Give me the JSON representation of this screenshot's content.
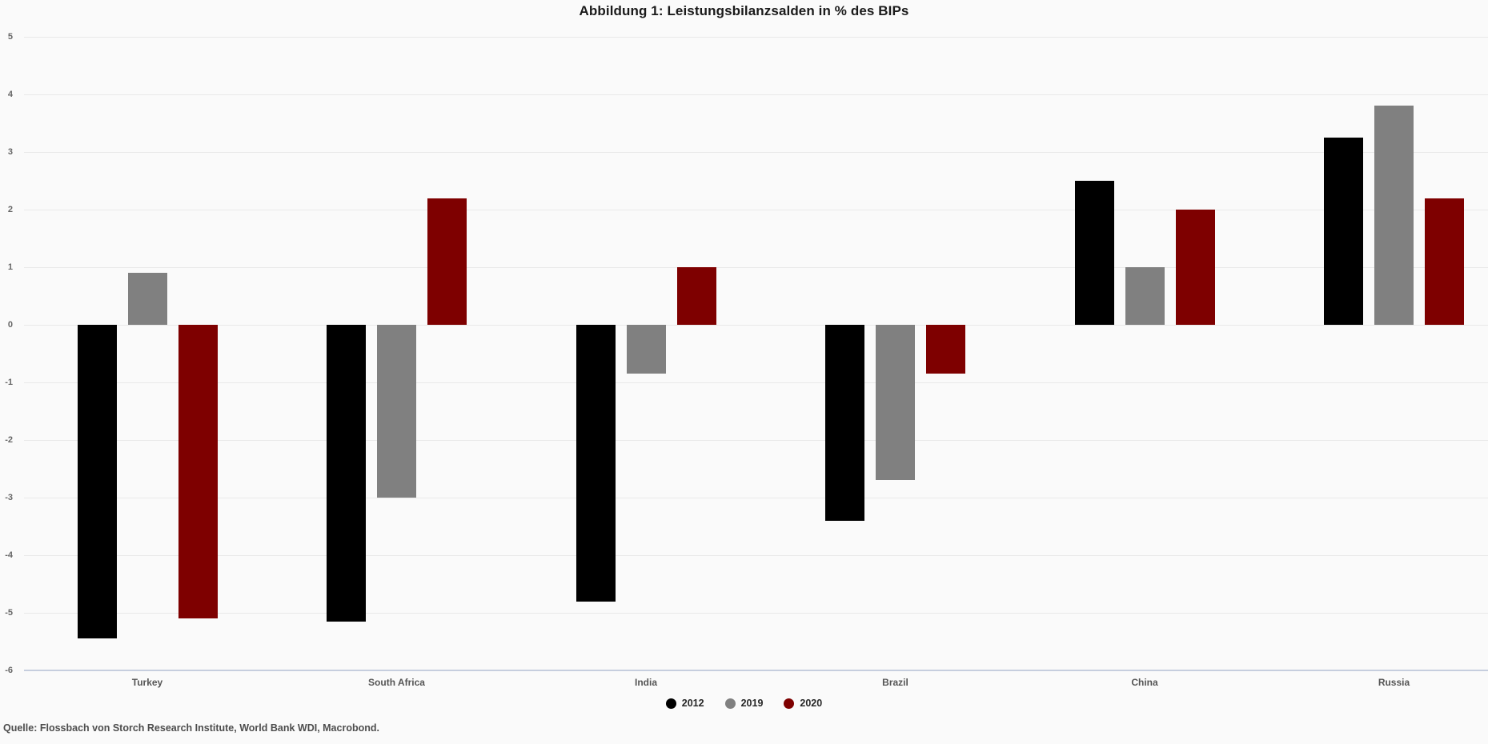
{
  "title": "Abbildung 1: Leistungsbilanzsalden in % des BIPs",
  "source": "Quelle: Flossbach von Storch Research Institute, World Bank WDI, Macrobond.",
  "colors": {
    "background": "#fafafa",
    "gridline": "#e9e9e9",
    "baseline": "#c6cede",
    "series_2012": "#000000",
    "series_2019": "#808080",
    "series_2020": "#7e0000"
  },
  "chart_data": {
    "type": "bar",
    "title": "Abbildung 1: Leistungsbilanzsalden in % des BIPs",
    "xlabel": "",
    "ylabel": "",
    "categories": [
      "Turkey",
      "South Africa",
      "India",
      "Brazil",
      "China",
      "Russia"
    ],
    "series": [
      {
        "name": "2012",
        "color": "#000000",
        "values": [
          -5.45,
          -5.15,
          -4.8,
          -3.4,
          2.5,
          3.25
        ]
      },
      {
        "name": "2019",
        "color": "#808080",
        "values": [
          0.9,
          -3.0,
          -0.85,
          -2.7,
          1.0,
          3.8
        ]
      },
      {
        "name": "2020",
        "color": "#7e0000",
        "values": [
          -5.1,
          2.2,
          1.0,
          -0.85,
          2.0,
          2.2
        ]
      }
    ],
    "y_ticks": [
      5,
      4,
      3,
      2,
      1,
      0,
      -1,
      -2,
      -3,
      -4,
      -5,
      -6
    ],
    "ylim": [
      -6,
      5
    ],
    "grid": true,
    "legend_position": "bottom",
    "source": "Quelle: Flossbach von Storch Research Institute, World Bank WDI, Macrobond."
  }
}
